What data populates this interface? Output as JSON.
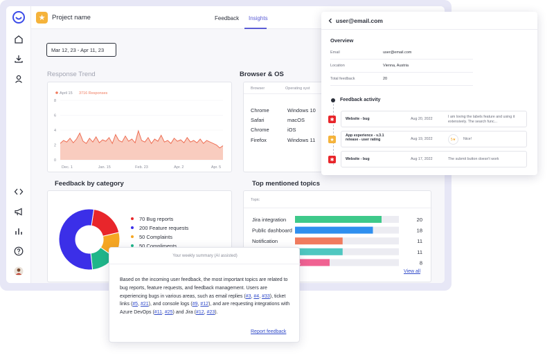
{
  "app": {
    "project_name": "Project name",
    "tabs": [
      "Feedback",
      "Insights"
    ],
    "date_range": "Mar 12, 23 - Apr 11, 23"
  },
  "sidebar": {
    "icons": [
      "logo-icon",
      "home-icon",
      "download-icon",
      "user-icon",
      "code-icon",
      "megaphone-icon",
      "bar-chart-icon",
      "help-icon",
      "avatar"
    ]
  },
  "response_trend": {
    "title": "Response Trend",
    "legend_date": "April 15",
    "legend_value": "3716 Responses",
    "colors": {
      "accent": "#f07b5e"
    }
  },
  "browser_os": {
    "title": "Browser & OS",
    "headers": [
      "Browser",
      "Operating syst"
    ],
    "rows": [
      [
        "Chrome",
        "Windows 10"
      ],
      [
        "Safari",
        "macOS"
      ],
      [
        "Chrome",
        "iOS"
      ],
      [
        "Firefox",
        "Windows 11"
      ]
    ]
  },
  "feedback_by_category": {
    "title": "Feedback by category",
    "items": [
      {
        "label": "70 Bug reports",
        "color": "#e8262b"
      },
      {
        "label": "200 Feature requests",
        "color": "#3b2fe8"
      },
      {
        "label": "50 Complaints",
        "color": "#f5a623"
      },
      {
        "label": "50 Compliments",
        "color": "#1fb68a"
      }
    ]
  },
  "top_topics": {
    "title": "Top mentioned topics",
    "column": "Topic",
    "view_all": "View all",
    "items": [
      {
        "label": "Jira integration",
        "count": "20",
        "color": "#3ec98a"
      },
      {
        "label": "Public dashboard",
        "count": "18",
        "color": "#2f8fef"
      },
      {
        "label": "Notification",
        "count": "11",
        "color": "#f07b5e"
      },
      {
        "label": "Payment",
        "count": "11",
        "color": "#4fc7c0"
      },
      {
        "label": "",
        "count": "8",
        "color": "#f06292"
      }
    ]
  },
  "user_panel": {
    "email_title": "user@email.com",
    "overview_title": "Overview",
    "fields": [
      {
        "key": "Email",
        "value": "user@email.com"
      },
      {
        "key": "Location",
        "value": "Vienna, Austria"
      },
      {
        "key": "Total feedback",
        "value": "20"
      }
    ],
    "activity_title": "Feedback activity",
    "activity": [
      {
        "title": "Website - bug",
        "date": "Aug 20, 2022",
        "text": "I am loving the labels feature and using it extensively. The search func...",
        "badge": "bug-icon",
        "color": "#e8262b"
      },
      {
        "title": "App experience - v.3.1 release - user rating",
        "date": "Aug 19, 2022",
        "text": "Nice!",
        "badge": "star-icon",
        "color": "#f5b33b",
        "rating": "5★"
      },
      {
        "title": "Website - bug",
        "date": "Aug 17, 2022",
        "text": "The submit button doesn't work",
        "badge": "bug-icon",
        "color": "#e8262b"
      }
    ]
  },
  "summary": {
    "header": "Your weekly summary (AI assisted)",
    "p1": "Based on the incoming user feedback, the most important topics are related to bug reports, feature requests, and feedback management. Users are experiencing bugs in various areas, such as email replies (",
    "links": [
      "#3",
      "#4",
      "#33",
      "#5",
      "#21",
      "#9",
      "#12",
      "#11",
      "#25",
      "#12",
      "#23"
    ],
    "t_comma1": ", ",
    "t_comma2": ", ",
    "t_ticket": "), ticket links (",
    "t_console": "), and console logs (",
    "t_requesting": "), and are requesting integrations with Azure DevOps (",
    "t_jira": ") and Jira (",
    "t_end": ").",
    "report_link": "Report feedback"
  },
  "chart_data": [
    {
      "type": "area",
      "title": "Response Trend",
      "xlabel": "",
      "ylabel": "",
      "x_ticks": [
        "Dec. 1",
        "Jan. 15",
        "Feb. 23",
        "Apr. 2",
        "Apr. 5"
      ],
      "y_ticks": [
        0,
        2,
        4,
        6,
        8
      ],
      "ylim": [
        0,
        8
      ],
      "values": [
        2.2,
        2.6,
        2.4,
        2.9,
        2.3,
        2.8,
        3.6,
        2.5,
        2.2,
        2.9,
        2.4,
        3.1,
        2.3,
        2.7,
        2.5,
        3.0,
        2.2,
        3.4,
        2.6,
        2.4,
        3.2,
        2.5,
        2.8,
        2.3,
        3.9,
        2.6,
        2.4,
        3.0,
        2.2,
        2.8,
        2.5,
        3.3,
        2.4,
        2.6,
        2.2,
        2.9,
        2.5,
        2.7,
        2.3,
        3.0,
        2.4,
        2.6,
        2.3,
        2.8,
        2.2,
        2.6,
        2.4,
        2.2,
        2.0,
        1.6,
        1.9
      ]
    },
    {
      "type": "pie",
      "title": "Feedback by category",
      "categories": [
        "Bug reports",
        "Feature requests",
        "Complaints",
        "Compliments"
      ],
      "values": [
        70,
        200,
        50,
        50
      ]
    },
    {
      "type": "bar",
      "title": "Top mentioned topics",
      "categories": [
        "Jira integration",
        "Public dashboard",
        "Notification",
        "Payment",
        ""
      ],
      "values": [
        20,
        18,
        11,
        11,
        8
      ],
      "xlim": [
        0,
        24
      ]
    }
  ]
}
